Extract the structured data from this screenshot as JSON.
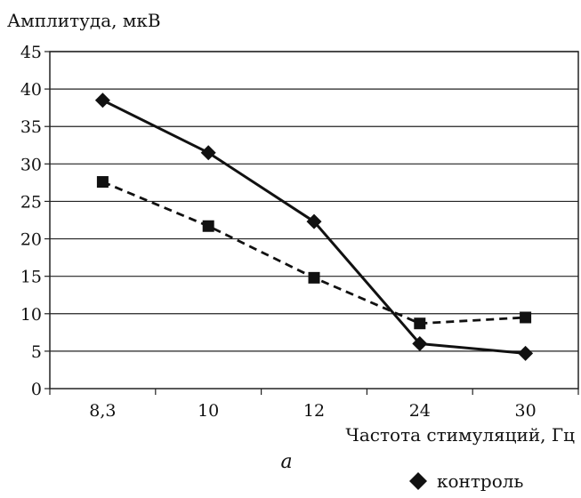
{
  "chart_data": {
    "type": "line",
    "ylabel": "Амплитуда, мкВ",
    "xlabel": "Частота стимуляций, Гц",
    "caption": "а",
    "categories": [
      "8,3",
      "10",
      "12",
      "24",
      "30"
    ],
    "y_ticks": [
      "0",
      "5",
      "10",
      "15",
      "20",
      "25",
      "30",
      "35",
      "40",
      "45"
    ],
    "ylim": [
      0,
      45
    ],
    "grid": true,
    "series": [
      {
        "name": "контроль",
        "marker": "diamond",
        "line": "solid",
        "values": [
          38.5,
          31.5,
          22.3,
          6,
          4.7
        ]
      },
      {
        "name": "",
        "marker": "square",
        "line": "dashed",
        "values": [
          27.6,
          21.7,
          14.8,
          8.7,
          9.5
        ]
      }
    ],
    "legend_position": "bottom-right"
  }
}
